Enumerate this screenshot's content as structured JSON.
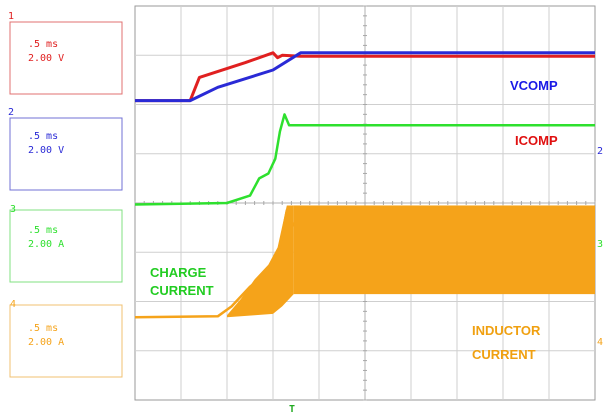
{
  "chart_data": {
    "type": "line",
    "title": "",
    "xlabel": "",
    "ylabel": "",
    "grid": true,
    "divisions": {
      "x": 10,
      "y": 8
    },
    "channels": [
      {
        "number": "1",
        "timebase": ".5 ms",
        "scale": "2.00 V",
        "color": "#e02020"
      },
      {
        "number": "2",
        "timebase": ".5 ms",
        "scale": "2.00 V",
        "color": "#2a2ad6"
      },
      {
        "number": "3",
        "timebase": ".5 ms",
        "scale": "2.00 A",
        "color": "#2ee02e"
      },
      {
        "number": "4",
        "timebase": ".5 ms",
        "scale": "2.00 A",
        "color": "#f5a31a"
      }
    ],
    "annotations": [
      {
        "text": "VCOMP",
        "color": "#1a1ae6"
      },
      {
        "text": "ICOMP",
        "color": "#e01010"
      },
      {
        "text": "CHARGE",
        "color": "#22cc22"
      },
      {
        "text": "CURRENT",
        "color": "#22cc22"
      },
      {
        "text": "INDUCTOR",
        "color": "#f0a010"
      },
      {
        "text": "CURRENT",
        "color": "#f0a010"
      }
    ],
    "series": [
      {
        "name": "ICOMP",
        "color": "#e02020",
        "x": [
          0,
          1.2,
          1.4,
          2.4,
          3.0,
          3.1,
          3.2,
          3.6,
          10
        ],
        "y": [
          6.08,
          6.08,
          6.55,
          6.85,
          7.05,
          6.95,
          7.0,
          6.98,
          6.98
        ]
      },
      {
        "name": "VCOMP",
        "color": "#2a2ad6",
        "x": [
          0,
          1.2,
          1.8,
          3.0,
          3.6,
          10
        ],
        "y": [
          6.08,
          6.08,
          6.35,
          6.7,
          7.05,
          7.05
        ]
      },
      {
        "name": "CHARGE CURRENT",
        "color": "#2ee02e",
        "x": [
          0,
          2.0,
          2.5,
          2.7,
          2.9,
          3.05,
          3.15,
          3.25,
          3.35,
          10
        ],
        "y": [
          3.97,
          4.0,
          4.15,
          4.5,
          4.6,
          4.9,
          5.45,
          5.8,
          5.58,
          5.58
        ]
      },
      {
        "name": "INDUCTOR CURRENT",
        "color": "#f5a31a",
        "x": [
          0,
          1.8,
          2.1,
          2.5,
          2.9,
          3.1,
          3.2,
          3.3,
          3.45,
          10
        ],
        "y": [
          1.68,
          1.7,
          1.9,
          2.3,
          2.6,
          2.85,
          3.35,
          3.85,
          3.55,
          3.55
        ]
      }
    ],
    "inductor_envelope": {
      "upper": 3.95,
      "lower": 2.15,
      "start_x": 3.45
    },
    "trigger_marker": "T"
  }
}
